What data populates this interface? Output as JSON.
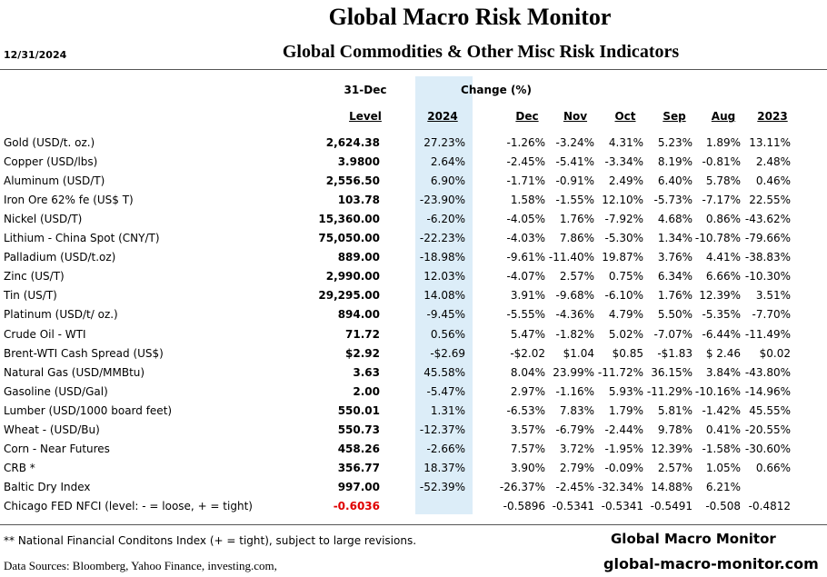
{
  "header": {
    "title": "Global Macro Risk Monitor",
    "date": "12/31/2024",
    "subtitle": "Global Commodities & Other Misc Risk Indicators"
  },
  "table": {
    "group_headers": [
      "31-Dec",
      "Change (%)"
    ],
    "columns": [
      "Level",
      "2024",
      "Dec",
      "Nov",
      "Oct",
      "Sep",
      "Aug",
      "2023"
    ],
    "rows": [
      [
        "Gold (USD/t. oz.)",
        "2,624.38",
        "27.23%",
        "-1.26%",
        "-3.24%",
        "4.31%",
        "5.23%",
        "1.89%",
        "13.11%"
      ],
      [
        "Copper (USD/lbs)",
        "3.9800",
        "2.64%",
        "-2.45%",
        "-5.41%",
        "-3.34%",
        "8.19%",
        "-0.81%",
        "2.48%"
      ],
      [
        "Aluminum (USD/T)",
        "2,556.50",
        "6.90%",
        "-1.71%",
        "-0.91%",
        "2.49%",
        "6.40%",
        "5.78%",
        "0.46%"
      ],
      [
        "Iron Ore 62% fe (US$ T)",
        "103.78",
        "-23.90%",
        "1.58%",
        "-1.55%",
        "12.10%",
        "-5.73%",
        "-7.17%",
        "22.55%"
      ],
      [
        "Nickel (USD/T)",
        "15,360.00",
        "-6.20%",
        "-4.05%",
        "1.76%",
        "-7.92%",
        "4.68%",
        "0.86%",
        "-43.62%"
      ],
      [
        "Lithium - China Spot (CNY/T)",
        "75,050.00",
        "-22.23%",
        "-4.03%",
        "7.86%",
        "-5.30%",
        "1.34%",
        "-10.78%",
        "-79.66%"
      ],
      [
        "Palladium (USD/t.oz)",
        "889.00",
        "-18.98%",
        "-9.61%",
        "-11.40%",
        "19.87%",
        "3.76%",
        "4.41%",
        "-38.83%"
      ],
      [
        "Zinc (US/T)",
        "2,990.00",
        "12.03%",
        "-4.07%",
        "2.57%",
        "0.75%",
        "6.34%",
        "6.66%",
        "-10.30%"
      ],
      [
        "Tin (US/T)",
        "29,295.00",
        "14.08%",
        "3.91%",
        "-9.68%",
        "-6.10%",
        "1.76%",
        "12.39%",
        "3.51%"
      ],
      [
        "Platinum (USD/t/ oz.)",
        "894.00",
        "-9.45%",
        "-5.55%",
        "-4.36%",
        "4.79%",
        "5.50%",
        "-5.35%",
        "-7.70%"
      ],
      [
        "Crude Oil - WTI",
        "71.72",
        "0.56%",
        "5.47%",
        "-1.82%",
        "5.02%",
        "-7.07%",
        "-6.44%",
        "-11.49%"
      ],
      [
        "Brent-WTI Cash Spread (US$)",
        "$2.92",
        "-$2.69",
        "-$2.02",
        "$1.04",
        "$0.85",
        "-$1.83",
        "$ 2.46",
        "$0.02"
      ],
      [
        "Natural Gas  (USD/MMBtu)",
        "3.63",
        "45.58%",
        "8.04%",
        "23.99%",
        "-11.72%",
        "36.15%",
        "3.84%",
        "-43.80%"
      ],
      [
        "Gasoline (USD/Gal)",
        "2.00",
        "-5.47%",
        "2.97%",
        "-1.16%",
        "5.93%",
        "-11.29%",
        "-10.16%",
        "-14.96%"
      ],
      [
        "Lumber (USD/1000 board feet)",
        "550.01",
        "1.31%",
        "-6.53%",
        "7.83%",
        "1.79%",
        "5.81%",
        "-1.42%",
        "45.55%"
      ],
      [
        "Wheat - (USD/Bu)",
        "550.73",
        "-12.37%",
        "3.57%",
        "-6.79%",
        "-2.44%",
        "9.78%",
        "0.41%",
        "-20.55%"
      ],
      [
        "Corn - Near Futures",
        "458.26",
        "-2.66%",
        "7.57%",
        "3.72%",
        "-1.95%",
        "12.39%",
        "-1.58%",
        "-30.60%"
      ],
      [
        "CRB *",
        "356.77",
        "18.37%",
        "3.90%",
        "2.79%",
        "-0.09%",
        "2.57%",
        "1.05%",
        "0.66%"
      ],
      [
        "Baltic Dry Index",
        "997.00",
        "-52.39%",
        "-26.37%",
        "-2.45%",
        "-32.34%",
        "14.88%",
        "6.21%",
        null
      ],
      [
        "Chicago FED NFCI (level:  - = loose,  + = tight)",
        "-0.6036",
        "",
        "-0.5896",
        "-0.5341",
        "-0.5341",
        "-0.5491",
        "-0.508",
        "-0.4812"
      ]
    ]
  },
  "footer": {
    "note": "** National Financial Conditons Index (+ =  tight), subject to large revisions.",
    "sources": "Data Sources:  Bloomberg,  Yahoo Finance, investing.com,",
    "brand": "Global Macro Monitor",
    "site": "global-macro-monitor.com"
  }
}
